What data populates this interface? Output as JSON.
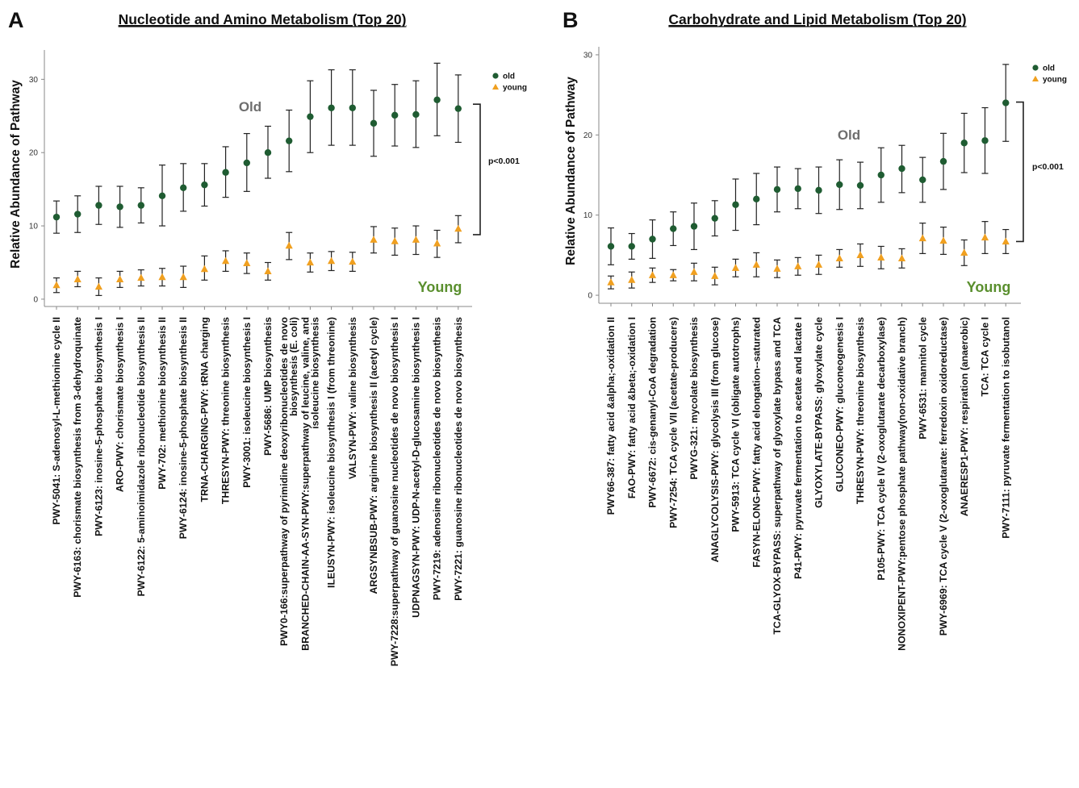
{
  "colors": {
    "old": "#1f5c32",
    "young": "#f0a020",
    "old_annotation": "#6e6e6e",
    "young_annotation": "#5a8f2e",
    "errorbar": "#222222",
    "axis": "#888888"
  },
  "chart_data": [
    {
      "type": "scatter",
      "panel_letter": "A",
      "title": "Nucleotide and Amino Metabolism (Top 20)",
      "ylabel": "Relative Abundance of Pathway",
      "xlabel": "",
      "ylim": [
        -1,
        34
      ],
      "yticks": [
        0,
        10,
        20,
        30
      ],
      "grid": false,
      "legend_position": "top-right",
      "legend": [
        {
          "name": "old",
          "marker": "circle"
        },
        {
          "name": "young",
          "marker": "triangle"
        }
      ],
      "annotations": {
        "old_label": "Old",
        "young_label": "Young",
        "pvalue": "p<0.001",
        "bracket": [
          8.8,
          26.6
        ]
      },
      "categories": [
        [
          "PWY-5041: S-adenosyl-L-methionine cycle II"
        ],
        [
          "PWY-6163: chorismate biosynthesis from 3-dehydroquinate"
        ],
        [
          "PWY-6123: inosine-5-phosphate biosynthesis I"
        ],
        [
          "ARO-PWY: chorismate biosynthesis I"
        ],
        [
          "PWY-6122: 5-aminoimidazole ribonucleotide biosynthesis II"
        ],
        [
          "PWY-702: methionine biosynthesis II"
        ],
        [
          "PWY-6124: inosine-5-phosphate biosynthesis II"
        ],
        [
          "TRNA-CHARGING-PWY: tRNA charging"
        ],
        [
          "THRESYN-PWY: threonine biosynthesis"
        ],
        [
          "PWY-3001: isoleucine biosynthesis I"
        ],
        [
          "PWY-5686: UMP biosynthesis"
        ],
        [
          "PWY0-166:superpathway of pyrimidine deoxyribonucleotides de novo",
          "biosynthesis (E. coli)"
        ],
        [
          "BRANCHED-CHAIN-AA-SYN-PWY:superpathway of leucine, valine, and",
          "isoleucine biosynthesis"
        ],
        [
          "ILEUSYN-PWY: isoleucine biosynthesis I (from threonine)"
        ],
        [
          "VALSYN-PWY: valine biosynthesis"
        ],
        [
          "ARGSYNBSUB-PWY: arginine biosynthesis II (acetyl cycle)"
        ],
        [
          "PWY-7228:superpathway of guanosine nucleotides de novo biosynthesis I"
        ],
        [
          "UDPNAGSYN-PWY: UDP-N-acetyl-D-glucosamine biosynthesis I"
        ],
        [
          "PWY-7219: adenosine ribonucleotides de novo biosynthesis"
        ],
        [
          "PWY-7221: guanosine ribonucleotides de novo biosynthesis"
        ]
      ],
      "series": [
        {
          "name": "old",
          "marker": "circle",
          "values": [
            11.2,
            11.6,
            12.8,
            12.6,
            12.8,
            14.1,
            15.2,
            15.6,
            17.3,
            18.6,
            20.0,
            21.6,
            24.9,
            26.1,
            26.1,
            24.0,
            25.1,
            25.2,
            27.2,
            26.0
          ],
          "lower": [
            9.0,
            9.1,
            10.2,
            9.8,
            10.4,
            10.0,
            12.0,
            12.7,
            13.9,
            14.7,
            16.5,
            17.4,
            20.0,
            21.0,
            21.0,
            19.5,
            20.9,
            20.7,
            22.3,
            21.4
          ],
          "upper": [
            13.4,
            14.1,
            15.4,
            15.4,
            15.2,
            18.3,
            18.5,
            18.5,
            20.8,
            22.6,
            23.6,
            25.8,
            29.8,
            31.3,
            31.3,
            28.5,
            29.3,
            29.8,
            32.2,
            30.6
          ]
        },
        {
          "name": "young",
          "marker": "triangle",
          "values": [
            1.9,
            2.7,
            1.7,
            2.7,
            2.9,
            3.0,
            3.0,
            4.1,
            5.2,
            4.9,
            3.8,
            7.3,
            5.0,
            5.2,
            5.1,
            8.1,
            7.9,
            8.1,
            7.6,
            9.6
          ],
          "lower": [
            0.9,
            1.7,
            0.5,
            1.6,
            1.8,
            1.8,
            1.6,
            2.6,
            3.8,
            3.5,
            2.6,
            5.4,
            3.7,
            3.9,
            3.8,
            6.3,
            6.0,
            6.1,
            5.7,
            7.7
          ],
          "upper": [
            2.9,
            3.8,
            2.9,
            3.8,
            4.0,
            4.2,
            4.5,
            5.9,
            6.6,
            6.3,
            5.0,
            9.1,
            6.3,
            6.5,
            6.4,
            9.9,
            9.7,
            10.0,
            9.4,
            11.4
          ]
        }
      ]
    },
    {
      "type": "scatter",
      "panel_letter": "B",
      "title": "Carbohydrate and Lipid Metabolism (Top 20)",
      "ylabel": "Relative Abundance of Pathway",
      "xlabel": "",
      "ylim": [
        -1,
        31
      ],
      "yticks": [
        0,
        10,
        20,
        30
      ],
      "grid": false,
      "legend_position": "top-right",
      "legend": [
        {
          "name": "old",
          "marker": "circle"
        },
        {
          "name": "young",
          "marker": "triangle"
        }
      ],
      "annotations": {
        "old_label": "Old",
        "young_label": "Young",
        "pvalue": "p<0.001",
        "bracket": [
          6.7,
          24.1
        ]
      },
      "categories": [
        [
          "PWY66-387: fatty acid &alpha;-oxidation II"
        ],
        [
          "FAO-PWY: fatty acid &beta;-oxidation I"
        ],
        [
          "PWY-6672: cis-genanyl-CoA degradation"
        ],
        [
          "PWY-7254: TCA cycle VII (acetate-producers)"
        ],
        [
          "PWYG-321: mycolate biosynthesis"
        ],
        [
          "ANAGLYCOLYSIS-PWY: glycolysis III (from glucose)"
        ],
        [
          "PWY-5913: TCA cycle VI (obligate autotrophs)"
        ],
        [
          "FASYN-ELONG-PWY: fatty acid elongation--saturated"
        ],
        [
          "TCA-GLYOX-BYPASS: superpathway of glyoxylate bypass and TCA"
        ],
        [
          "P41-PWY: pyruvate fermentation to acetate and lactate I"
        ],
        [
          "GLYOXYLATE-BYPASS: glyoxylate cycle"
        ],
        [
          "GLUCONEO-PWY: gluconeogenesis I"
        ],
        [
          "THRESYN-PWY: threonine biosynthesis"
        ],
        [
          "P105-PWY: TCA cycle IV (2-oxoglutarate decarboxylase)"
        ],
        [
          "NONOXIPENT-PWY:pentose phosphate pathway(non-oxidative branch)"
        ],
        [
          "PWY-6531: mannitol cycle"
        ],
        [
          "PWY-6969: TCA cycle V (2-oxoglutarate: ferredoxin oxidoreductase)"
        ],
        [
          "ANAERESP1-PWY: respiration (anaerobic)"
        ],
        [
          "TCA: TCA cycle I"
        ],
        [
          "PWY-7111: pyruvate fermentation to isobutanol"
        ]
      ],
      "series": [
        {
          "name": "old",
          "marker": "circle",
          "values": [
            6.1,
            6.1,
            7.0,
            8.3,
            8.6,
            9.6,
            11.3,
            12.0,
            13.2,
            13.3,
            13.1,
            13.8,
            13.7,
            15.0,
            15.8,
            14.4,
            16.7,
            19.0,
            19.3,
            24.0
          ],
          "lower": [
            3.8,
            4.5,
            4.6,
            6.2,
            5.7,
            7.4,
            8.1,
            8.8,
            10.4,
            10.8,
            10.2,
            10.7,
            10.8,
            11.6,
            12.8,
            11.6,
            13.2,
            15.3,
            15.2,
            19.2
          ],
          "upper": [
            8.4,
            7.7,
            9.4,
            10.4,
            11.5,
            11.8,
            14.5,
            15.2,
            16.0,
            15.8,
            16.0,
            16.9,
            16.6,
            18.4,
            18.7,
            17.2,
            20.2,
            22.7,
            23.4,
            28.8
          ]
        },
        {
          "name": "young",
          "marker": "triangle",
          "values": [
            1.6,
            1.9,
            2.5,
            2.5,
            2.9,
            2.4,
            3.4,
            3.8,
            3.3,
            3.6,
            3.8,
            4.6,
            5.0,
            4.7,
            4.6,
            7.1,
            6.8,
            5.3,
            7.2,
            6.7
          ],
          "lower": [
            0.8,
            0.9,
            1.6,
            1.8,
            1.8,
            1.3,
            2.3,
            2.3,
            2.2,
            2.5,
            2.6,
            3.5,
            3.6,
            3.3,
            3.4,
            5.2,
            5.1,
            3.7,
            5.2,
            5.2
          ],
          "upper": [
            2.4,
            2.9,
            3.4,
            3.2,
            4.0,
            3.5,
            4.5,
            5.3,
            4.4,
            4.7,
            5.0,
            5.7,
            6.4,
            6.1,
            5.8,
            9.0,
            8.5,
            6.9,
            9.2,
            8.2
          ]
        }
      ]
    }
  ]
}
